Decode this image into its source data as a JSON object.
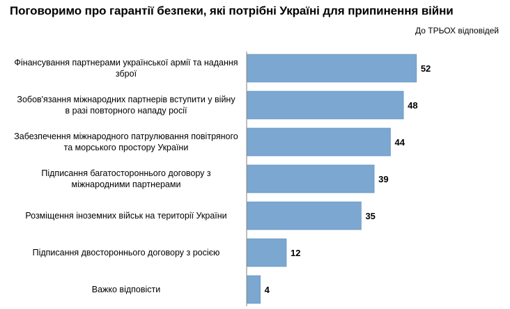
{
  "header": {
    "title": "Поговоримо про гарантії безпеки, які потрібні Україні для припинення війни",
    "subtitle": "До ТРЬОХ відповідей"
  },
  "colors": {
    "bar": "#7BA7D1",
    "bar_stroke": "#5E8FC0",
    "axis": "#808080"
  },
  "chart_data": {
    "type": "bar",
    "orientation": "horizontal",
    "title": "Поговоримо про гарантії безпеки, які потрібні Україні для припинення війни",
    "subtitle": "До ТРЬОХ відповідей",
    "categories": [
      "Фінансування партнерами української армії та надання зброї",
      "Зобов'язання міжнародних партнерів вступити у війну в разі повторного нападу росії",
      "Забезпечення міжнародного патрулювання повітряного та морського простору України",
      "Підписання багатостороннього договору з міжнародними партнерами",
      "Розміщення іноземних військ на території України",
      "Підписання двостороннього договору з росією",
      "Важко відповісти"
    ],
    "values": [
      52,
      48,
      44,
      39,
      35,
      12,
      4
    ],
    "xlim": [
      0,
      60
    ],
    "grid": false,
    "legend": "none",
    "data_labels": true
  }
}
